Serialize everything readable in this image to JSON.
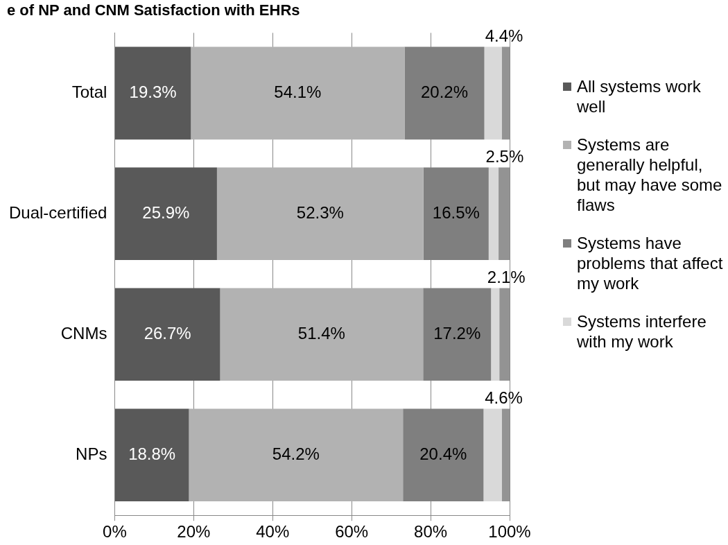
{
  "chart_data": {
    "type": "bar",
    "orientation": "horizontal",
    "stacked": true,
    "title": "e of NP and CNM Satisfaction with EHRs",
    "categories": [
      "Total",
      "Dual-certified",
      "CNMs",
      "NPs"
    ],
    "series": [
      {
        "name": "All systems work well",
        "color": "#595959",
        "values": [
          19.3,
          25.9,
          26.7,
          18.8
        ],
        "value_labels": [
          "19.3%",
          "25.9%",
          "26.7%",
          "18.8%"
        ]
      },
      {
        "name": "Systems are generally helpful, but may have some flaws",
        "color": "#b2b2b2",
        "values": [
          54.1,
          52.3,
          51.4,
          54.2
        ],
        "value_labels": [
          "54.1%",
          "52.3%",
          "51.4%",
          "54.2%"
        ]
      },
      {
        "name": "Systems have problems that affect my work",
        "color": "#7f7f7f",
        "values": [
          20.2,
          16.5,
          17.2,
          20.4
        ],
        "value_labels": [
          "20.2%",
          "16.5%",
          "17.2%",
          "20.4%"
        ]
      },
      {
        "name": "Systems interfere with my work",
        "color": "#d9d9d9",
        "values": [
          4.4,
          2.5,
          2.1,
          4.6
        ],
        "value_labels": [
          "4.4%",
          "2.5%",
          "2.1%",
          "4.6%"
        ]
      },
      {
        "color": "#939393",
        "values": [
          2.0,
          2.8,
          2.6,
          2.0
        ]
      }
    ],
    "xlim": [
      0,
      100
    ],
    "xticks": [
      {
        "value": 0,
        "label": "0%"
      },
      {
        "value": 20,
        "label": "20%"
      },
      {
        "value": 40,
        "label": "40%"
      },
      {
        "value": 60,
        "label": "60%"
      },
      {
        "value": 80,
        "label": "80%"
      },
      {
        "value": 100,
        "label": "100%"
      }
    ],
    "grid": "x",
    "legend": "right"
  }
}
